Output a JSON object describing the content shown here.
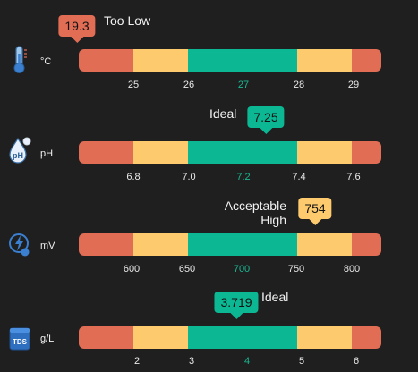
{
  "colors": {
    "red": "#e26d55",
    "yellow": "#fdcb6e",
    "green": "#0cb894"
  },
  "gauges": [
    {
      "key": "temp",
      "icon": "thermometer-icon",
      "unit": "°C",
      "value": "19.3",
      "status": "Too Low",
      "level": "red",
      "position": 0.0,
      "ticks": [
        "25",
        "26",
        "27",
        "28",
        "29"
      ]
    },
    {
      "key": "ph",
      "icon": "ph-drop-icon",
      "unit": "pH",
      "value": "7.25",
      "status": "Ideal",
      "level": "green",
      "position": 0.625,
      "ticks": [
        "6.8",
        "7.0",
        "7.2",
        "7.4",
        "7.6"
      ]
    },
    {
      "key": "orp",
      "icon": "orp-bolt-icon",
      "unit": "mV",
      "value": "754",
      "status_lines": [
        "Acceptable",
        "High"
      ],
      "level": "yellow",
      "position": 0.76,
      "ticks": [
        "600",
        "650",
        "700",
        "750",
        "800"
      ]
    },
    {
      "key": "tds",
      "icon": "tds-icon",
      "unit": "g/L",
      "value": "3.719",
      "status": "Ideal",
      "level": "green",
      "position": 0.52,
      "ticks": [
        "2",
        "3",
        "4",
        "5",
        "6"
      ]
    }
  ]
}
